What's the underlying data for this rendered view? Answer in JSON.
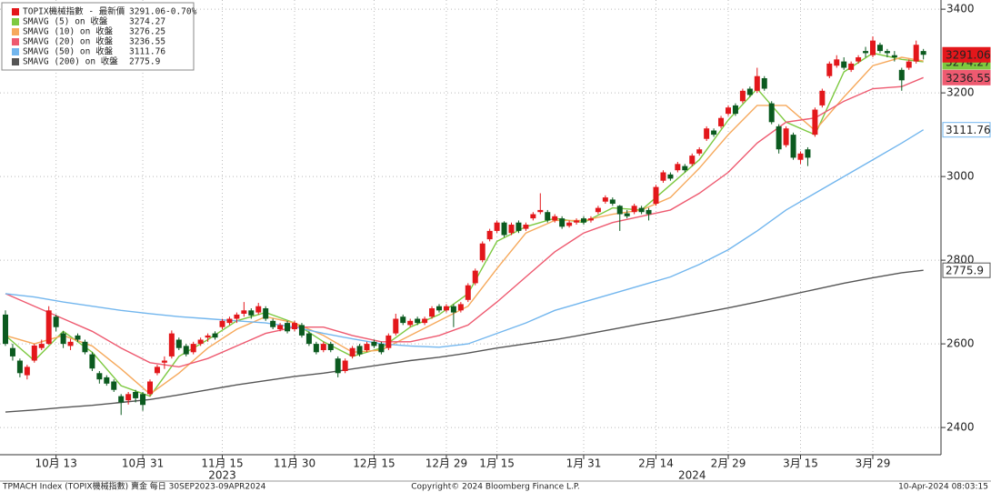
{
  "chart_data": {
    "type": "candlestick",
    "legend_title": "TOPIX機械指數 - 最新價",
    "legend_change": "-0.70%",
    "up_color": "#e3171b",
    "down_color": "#0b5a1f",
    "candles": [
      [
        2670,
        2680,
        2595,
        2600
      ],
      [
        2590,
        2600,
        2560,
        2570
      ],
      [
        2560,
        2565,
        2520,
        2530
      ],
      [
        2525,
        2550,
        2515,
        2545
      ],
      [
        2560,
        2600,
        2555,
        2596
      ],
      [
        2590,
        2610,
        2585,
        2600
      ],
      [
        2600,
        2690,
        2598,
        2680
      ],
      [
        2665,
        2670,
        2630,
        2640
      ],
      [
        2625,
        2630,
        2590,
        2600
      ],
      [
        2595,
        2612,
        2585,
        2605
      ],
      [
        2620,
        2625,
        2605,
        2610
      ],
      [
        2605,
        2610,
        2575,
        2580
      ],
      [
        2575,
        2580,
        2535,
        2541
      ],
      [
        2530,
        2535,
        2505,
        2515
      ],
      [
        2520,
        2525,
        2500,
        2505
      ],
      [
        2510,
        2515,
        2485,
        2490
      ],
      [
        2475,
        2480,
        2430,
        2460
      ],
      [
        2465,
        2485,
        2455,
        2480
      ],
      [
        2485,
        2490,
        2460,
        2470
      ],
      [
        2480,
        2485,
        2440,
        2454
      ],
      [
        2480,
        2515,
        2475,
        2510
      ],
      [
        2530,
        2550,
        2525,
        2545
      ],
      [
        2555,
        2570,
        2540,
        2560
      ],
      [
        2570,
        2632,
        2565,
        2625
      ],
      [
        2610,
        2615,
        2585,
        2590
      ],
      [
        2595,
        2600,
        2570,
        2575
      ],
      [
        2580,
        2605,
        2575,
        2600
      ],
      [
        2600,
        2615,
        2595,
        2610
      ],
      [
        2615,
        2625,
        2605,
        2620
      ],
      [
        2625,
        2630,
        2610,
        2615
      ],
      [
        2640,
        2660,
        2635,
        2655
      ],
      [
        2650,
        2665,
        2645,
        2660
      ],
      [
        2660,
        2675,
        2650,
        2670
      ],
      [
        2672,
        2700,
        2665,
        2680
      ],
      [
        2680,
        2685,
        2660,
        2668
      ],
      [
        2675,
        2698,
        2670,
        2690
      ],
      [
        2685,
        2690,
        2655,
        2660
      ],
      [
        2655,
        2660,
        2635,
        2640
      ],
      [
        2635,
        2650,
        2630,
        2645
      ],
      [
        2650,
        2655,
        2625,
        2630
      ],
      [
        2635,
        2655,
        2630,
        2650
      ],
      [
        2645,
        2650,
        2615,
        2620
      ],
      [
        2625,
        2630,
        2595,
        2600
      ],
      [
        2600,
        2605,
        2575,
        2580
      ],
      [
        2585,
        2605,
        2580,
        2600
      ],
      [
        2600,
        2605,
        2580,
        2585
      ],
      [
        2565,
        2570,
        2520,
        2530
      ],
      [
        2535,
        2565,
        2530,
        2560
      ],
      [
        2570,
        2595,
        2565,
        2590
      ],
      [
        2595,
        2600,
        2570,
        2575
      ],
      [
        2585,
        2605,
        2580,
        2600
      ],
      [
        2605,
        2610,
        2590,
        2595
      ],
      [
        2600,
        2605,
        2575,
        2580
      ],
      [
        2590,
        2625,
        2585,
        2620
      ],
      [
        2625,
        2672,
        2620,
        2660
      ],
      [
        2665,
        2670,
        2645,
        2650
      ],
      [
        2645,
        2660,
        2640,
        2655
      ],
      [
        2660,
        2665,
        2645,
        2650
      ],
      [
        2650,
        2665,
        2645,
        2660
      ],
      [
        2665,
        2690,
        2660,
        2685
      ],
      [
        2690,
        2695,
        2675,
        2680
      ],
      [
        2680,
        2695,
        2675,
        2690
      ],
      [
        2690,
        2695,
        2640,
        2675
      ],
      [
        2680,
        2700,
        2675,
        2695
      ],
      [
        2705,
        2745,
        2700,
        2740
      ],
      [
        2745,
        2780,
        2740,
        2775
      ],
      [
        2800,
        2845,
        2795,
        2840
      ],
      [
        2850,
        2875,
        2845,
        2870
      ],
      [
        2870,
        2895,
        2865,
        2890
      ],
      [
        2890,
        2893,
        2855,
        2860
      ],
      [
        2865,
        2890,
        2860,
        2885
      ],
      [
        2890,
        2895,
        2865,
        2870
      ],
      [
        2875,
        2890,
        2870,
        2885
      ],
      [
        2900,
        2915,
        2895,
        2910
      ],
      [
        2915,
        2960,
        2910,
        2920
      ],
      [
        2915,
        2920,
        2890,
        2895
      ],
      [
        2895,
        2910,
        2890,
        2905
      ],
      [
        2900,
        2905,
        2875,
        2880
      ],
      [
        2882,
        2895,
        2878,
        2890
      ],
      [
        2890,
        2900,
        2885,
        2895
      ],
      [
        2900,
        2905,
        2885,
        2890
      ],
      [
        2895,
        2905,
        2890,
        2900
      ],
      [
        2915,
        2930,
        2910,
        2925
      ],
      [
        2940,
        2955,
        2935,
        2950
      ],
      [
        2945,
        2950,
        2930,
        2935
      ],
      [
        2930,
        2932,
        2870,
        2910
      ],
      [
        2912,
        2920,
        2900,
        2905
      ],
      [
        2915,
        2935,
        2910,
        2930
      ],
      [
        2925,
        2930,
        2910,
        2915
      ],
      [
        2920,
        2925,
        2895,
        2910
      ],
      [
        2935,
        2980,
        2930,
        2975
      ],
      [
        2990,
        3015,
        2985,
        3010
      ],
      [
        3005,
        3010,
        2990,
        2995
      ],
      [
        3015,
        3035,
        3010,
        3030
      ],
      [
        3025,
        3030,
        3010,
        3015
      ],
      [
        3030,
        3055,
        3025,
        3050
      ],
      [
        3055,
        3070,
        3050,
        3065
      ],
      [
        3090,
        3120,
        3085,
        3115
      ],
      [
        3110,
        3115,
        3095,
        3100
      ],
      [
        3120,
        3145,
        3115,
        3140
      ],
      [
        3150,
        3170,
        3145,
        3165
      ],
      [
        3170,
        3175,
        3145,
        3150
      ],
      [
        3180,
        3210,
        3175,
        3205
      ],
      [
        3210,
        3215,
        3190,
        3195
      ],
      [
        3205,
        3260,
        3200,
        3240
      ],
      [
        3235,
        3240,
        3205,
        3210
      ],
      [
        3175,
        3180,
        3125,
        3130
      ],
      [
        3120,
        3125,
        3055,
        3065
      ],
      [
        3075,
        3120,
        3070,
        3115
      ],
      [
        3100,
        3105,
        3040,
        3045
      ],
      [
        3040,
        3060,
        3030,
        3055
      ],
      [
        3065,
        3070,
        3025,
        3045
      ],
      [
        3100,
        3165,
        3095,
        3160
      ],
      [
        3170,
        3210,
        3165,
        3205
      ],
      [
        3240,
        3275,
        3235,
        3270
      ],
      [
        3265,
        3290,
        3260,
        3280
      ],
      [
        3275,
        3285,
        3255,
        3260
      ],
      [
        3255,
        3275,
        3250,
        3270
      ],
      [
        3275,
        3290,
        3270,
        3285
      ],
      [
        3300,
        3310,
        3285,
        3295
      ],
      [
        3290,
        3335,
        3285,
        3325
      ],
      [
        3315,
        3320,
        3295,
        3300
      ],
      [
        3300,
        3305,
        3285,
        3295
      ],
      [
        3290,
        3300,
        3275,
        3285
      ],
      [
        3255,
        3260,
        3205,
        3230
      ],
      [
        3260,
        3280,
        3255,
        3275
      ],
      [
        3275,
        3325,
        3270,
        3315
      ],
      [
        3300,
        3305,
        3280,
        3291.06
      ]
    ],
    "ma_x": [
      0,
      4,
      8,
      12,
      16,
      20,
      24,
      28,
      32,
      36,
      40,
      44,
      48,
      52,
      56,
      60,
      64,
      68,
      72,
      76,
      80,
      84,
      88,
      92,
      96,
      100,
      104,
      108,
      112,
      116,
      120,
      124,
      127
    ],
    "series": [
      {
        "name": "SMAVG (5)  on 收盤",
        "color": "#7dc940",
        "values": [
          2620,
          2560,
          2630,
          2580,
          2500,
          2475,
          2570,
          2610,
          2655,
          2675,
          2650,
          2605,
          2570,
          2590,
          2640,
          2670,
          2720,
          2845,
          2880,
          2900,
          2890,
          2925,
          2920,
          2980,
          3040,
          3135,
          3210,
          3130,
          3100,
          3250,
          3295,
          3280,
          3274.27
        ]
      },
      {
        "name": "SMAVG (10)  on 收盤",
        "color": "#f6a95c",
        "values": [
          2620,
          2600,
          2620,
          2595,
          2540,
          2480,
          2530,
          2590,
          2635,
          2665,
          2650,
          2620,
          2580,
          2585,
          2620,
          2655,
          2690,
          2780,
          2865,
          2895,
          2895,
          2910,
          2920,
          2950,
          3020,
          3100,
          3170,
          3170,
          3110,
          3190,
          3265,
          3285,
          3276.25
        ]
      },
      {
        "name": "SMAVG (20)  on 收盤",
        "color": "#ee5a70",
        "values": [
          2720,
          2690,
          2660,
          2630,
          2590,
          2555,
          2545,
          2565,
          2595,
          2625,
          2640,
          2640,
          2620,
          2605,
          2605,
          2620,
          2645,
          2700,
          2760,
          2820,
          2865,
          2890,
          2905,
          2920,
          2960,
          3010,
          3080,
          3130,
          3140,
          3180,
          3210,
          3215,
          3236.55
        ]
      },
      {
        "name": "SMAVG (50)  on 收盤",
        "color": "#72b6ee",
        "values": [
          2720,
          2712,
          2700,
          2690,
          2680,
          2672,
          2665,
          2660,
          2655,
          2650,
          2640,
          2625,
          2612,
          2600,
          2595,
          2592,
          2600,
          2625,
          2650,
          2680,
          2700,
          2720,
          2740,
          2760,
          2790,
          2825,
          2870,
          2920,
          2960,
          3000,
          3040,
          3080,
          3111.76
        ]
      },
      {
        "name": "SMAVG (200)  on 收盤",
        "color": "#555555",
        "values": [
          2437,
          2442,
          2448,
          2453,
          2460,
          2467,
          2478,
          2490,
          2502,
          2512,
          2522,
          2530,
          2540,
          2550,
          2560,
          2568,
          2578,
          2590,
          2600,
          2610,
          2622,
          2635,
          2648,
          2660,
          2673,
          2686,
          2700,
          2715,
          2730,
          2745,
          2758,
          2770,
          2775.9
        ]
      }
    ],
    "ylim": [
      2335,
      3422
    ],
    "yticks": [
      2400,
      2600,
      2800,
      3000,
      3200,
      3400
    ],
    "grid": true,
    "xticks": [
      {
        "value": 7,
        "label": "10月 13"
      },
      {
        "value": 19,
        "label": "10月 31"
      },
      {
        "value": 30,
        "label": "11月 15"
      },
      {
        "value": 40,
        "label": "11月 30"
      },
      {
        "value": 51,
        "label": "12月 15"
      },
      {
        "value": 61,
        "label": "12月 29"
      },
      {
        "value": 68,
        "label": "1月 15"
      },
      {
        "value": 80,
        "label": "1月 31"
      },
      {
        "value": 90,
        "label": "2月 14"
      },
      {
        "value": 100,
        "label": "2月 29"
      },
      {
        "value": 110,
        "label": "3月 15"
      },
      {
        "value": 120,
        "label": "3月 29"
      }
    ],
    "year_labels": [
      {
        "value": 30,
        "label": "2023"
      },
      {
        "value": 95,
        "label": "2024"
      }
    ],
    "footer_left": "TPMACH Index (TOPIX機械指數) 賣金  每日 30SEP2023-09APR2024",
    "footer_center": "Copyright© 2024 Bloomberg Finance L.P.",
    "footer_right": "10-Apr-2024 08:03:15"
  }
}
